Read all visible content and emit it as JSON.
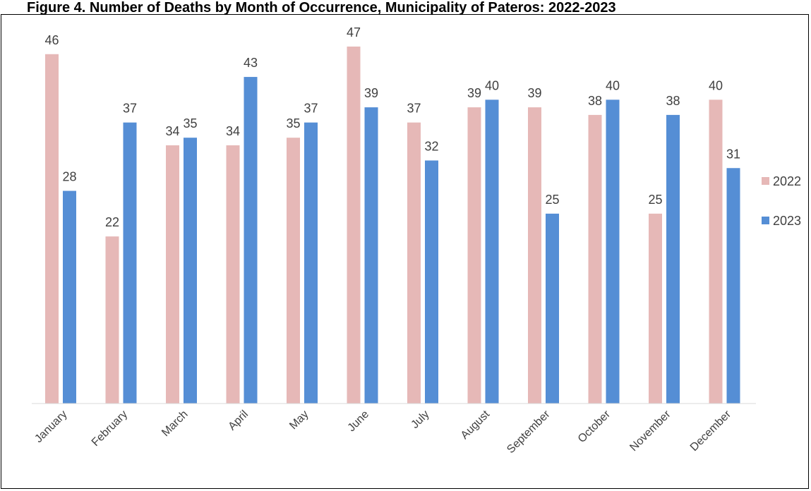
{
  "chart_data": {
    "type": "bar",
    "title": "Figure 4. Number of Deaths by Month of Occurrence, Municipality of Pateros: 2022-2023",
    "categories": [
      "January",
      "February",
      "March",
      "April",
      "May",
      "June",
      "July",
      "August",
      "September",
      "October",
      "November",
      "December"
    ],
    "series": [
      {
        "name": "2022",
        "values": [
          46,
          22,
          34,
          34,
          35,
          47,
          37,
          39,
          39,
          38,
          25,
          40
        ],
        "color": "#e6b8b7"
      },
      {
        "name": "2023",
        "values": [
          28,
          37,
          35,
          43,
          37,
          39,
          32,
          40,
          25,
          40,
          38,
          31
        ],
        "color": "#558ed5"
      }
    ],
    "ylim": [
      0,
      47
    ],
    "grid": false,
    "legend": "right",
    "data_labels": true
  }
}
